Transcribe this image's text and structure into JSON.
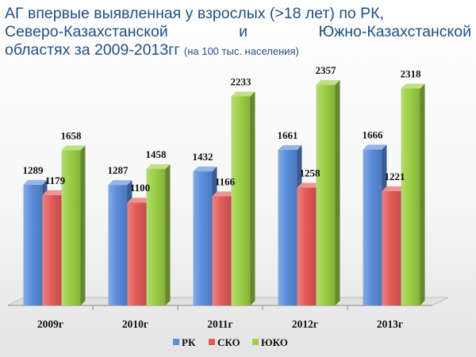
{
  "title": {
    "line1": "АГ впервые выявленная у взрослых (>18 лет) по РК,",
    "line2_left": "Северо-Казахстанской",
    "line2_mid": "и",
    "line2_right": "Южно-Казахстанской",
    "line3": "областях за 2009-2013гг",
    "note": "(на 100 тыс. населения)"
  },
  "chart_data": {
    "type": "bar",
    "categories": [
      "2009г",
      "2010г",
      "2011г",
      "2012г",
      "2013г"
    ],
    "series": [
      {
        "name": "РК",
        "values": [
          1289,
          1287,
          1432,
          1661,
          1666
        ]
      },
      {
        "name": "СКО",
        "values": [
          1179,
          1100,
          1166,
          1258,
          1221
        ]
      },
      {
        "name": "ЮКО",
        "values": [
          1658,
          1458,
          2233,
          2357,
          2318
        ]
      }
    ],
    "ylim": [
      0,
      2500
    ],
    "grid": false,
    "legend_position": "bottom",
    "colors": {
      "РК": "#5b8ddc",
      "СКО": "#e35b58",
      "ЮКО": "#9ccf45"
    }
  }
}
